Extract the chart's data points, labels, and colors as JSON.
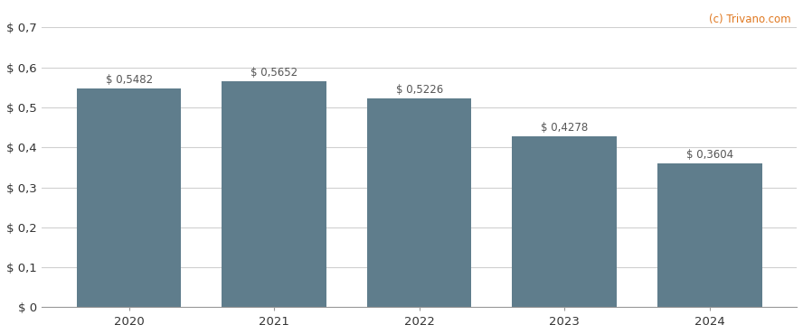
{
  "categories": [
    "2020",
    "2021",
    "2022",
    "2023",
    "2024"
  ],
  "values": [
    0.5482,
    0.5652,
    0.5226,
    0.4278,
    0.3604
  ],
  "labels": [
    "$ 0,5482",
    "$ 0,5652",
    "$ 0,5226",
    "$ 0,4278",
    "$ 0,3604"
  ],
  "bar_color": "#5f7d8c",
  "background_color": "#ffffff",
  "grid_color": "#d0d0d0",
  "text_color": "#333333",
  "label_color": "#555555",
  "ylim": [
    0,
    0.7
  ],
  "yticks": [
    0.0,
    0.1,
    0.2,
    0.3,
    0.4,
    0.5,
    0.6,
    0.7
  ],
  "ytick_labels": [
    "$ 0",
    "$ 0,1",
    "$ 0,2",
    "$ 0,3",
    "$ 0,4",
    "$ 0,5",
    "$ 0,6",
    "$ 0,7"
  ],
  "watermark": "(c) Trivano.com",
  "bar_width": 0.72,
  "label_fontsize": 8.5,
  "tick_fontsize": 9.5,
  "watermark_fontsize": 8.5,
  "watermark_color": "#e07820"
}
